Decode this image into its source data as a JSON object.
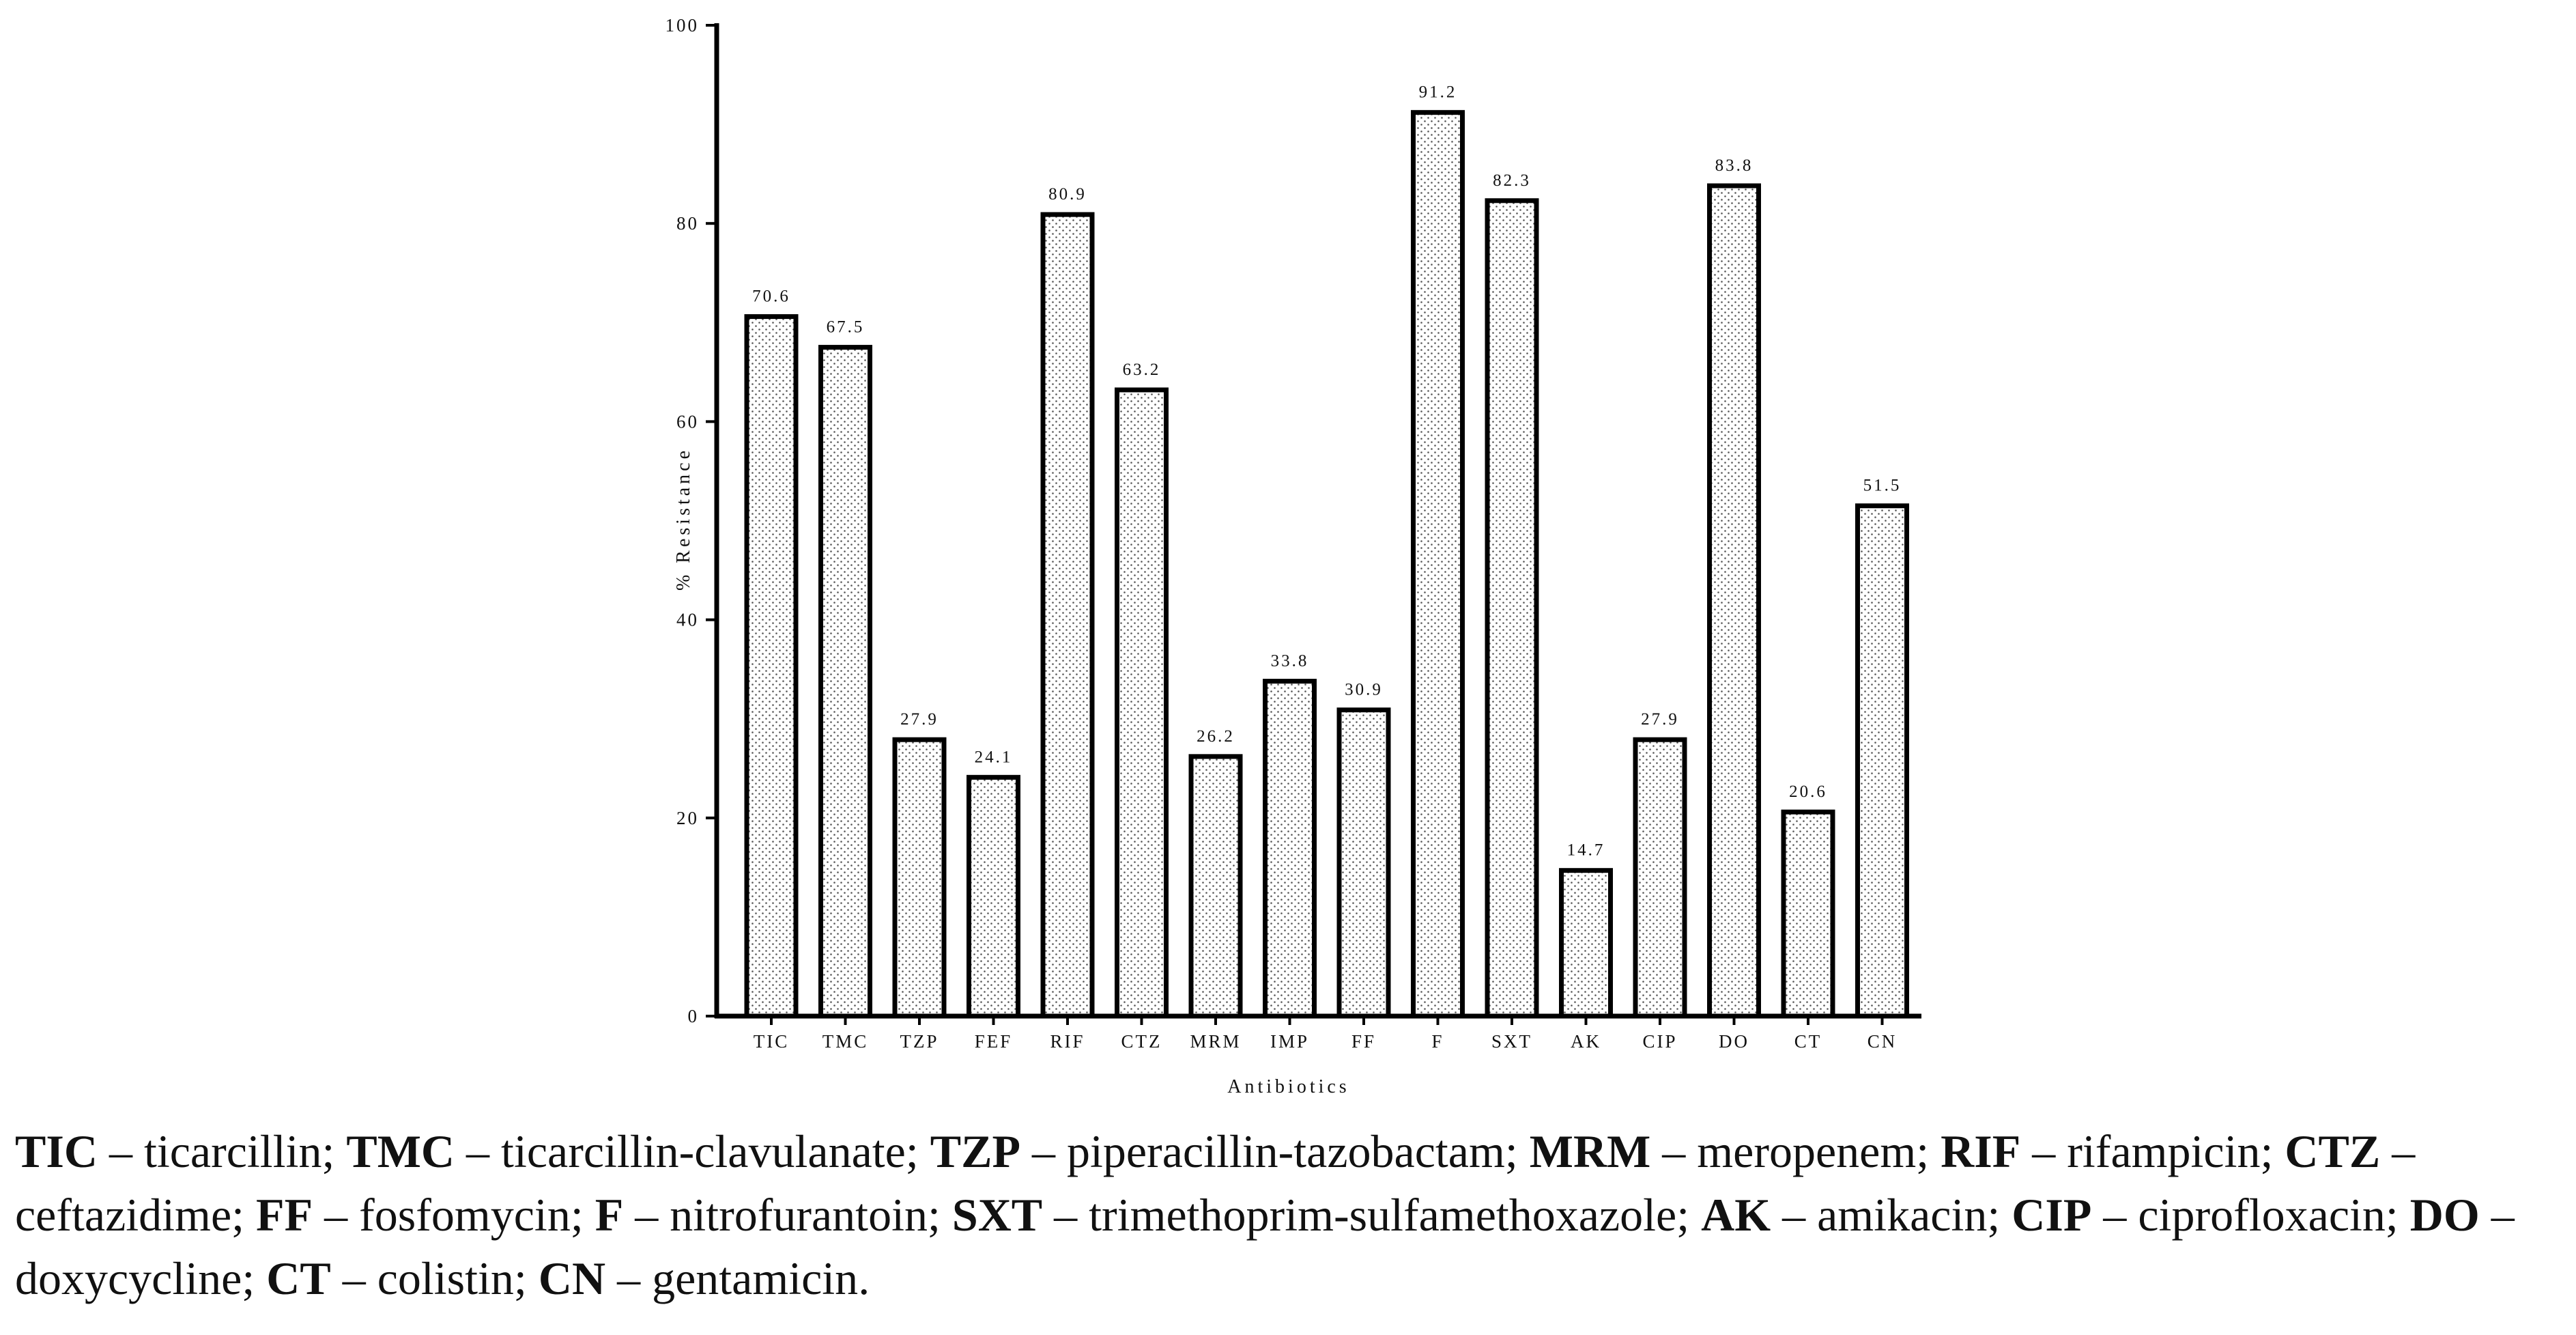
{
  "chart_data": {
    "type": "bar",
    "categories": [
      "TIC",
      "TMC",
      "TZP",
      "FEF",
      "RIF",
      "CTZ",
      "MRM",
      "IMP",
      "FF",
      "F",
      "SXT",
      "AK",
      "CIP",
      "DO",
      "CT",
      "CN"
    ],
    "values": [
      70.6,
      67.5,
      27.9,
      24.1,
      80.9,
      63.2,
      26.2,
      33.8,
      30.9,
      91.2,
      82.3,
      14.7,
      27.9,
      83.8,
      20.6,
      51.5
    ],
    "value_labels": [
      "70.6",
      "67.5",
      "27.9",
      "24.1",
      "80.9",
      "63.2",
      "26.2",
      "33.8",
      "30.9",
      "91.2",
      "82.3",
      "14.7",
      "27.9",
      "83.8",
      "20.6",
      "51.5"
    ],
    "xlabel": "Antibiotics",
    "ylabel": "% Resistance",
    "ylim": [
      0,
      100
    ],
    "yticks": [
      0,
      20,
      40,
      60,
      80,
      100
    ],
    "ytick_labels": [
      "0",
      "20",
      "40",
      "60",
      "80",
      "100"
    ],
    "grid": false,
    "bar_fill": "dotted",
    "bar_color": "#ffffff",
    "bar_edge_color": "#000000"
  },
  "legend_text": [
    {
      "abbr": "TIC",
      "name": "ticarcillin"
    },
    {
      "abbr": "TMC",
      "name": "ticarcillin-clavulanate"
    },
    {
      "abbr": "TZP",
      "name": "piperacillin-tazobactam"
    },
    {
      "abbr": "MRM",
      "name": "meropenem"
    },
    {
      "abbr": "RIF",
      "name": "rifampicin"
    },
    {
      "abbr": "CTZ",
      "name": "ceftazidime"
    },
    {
      "abbr": "FF",
      "name": "fosfomycin"
    },
    {
      "abbr": "F",
      "name": "nitrofurantoin"
    },
    {
      "abbr": "SXT",
      "name": "trimethoprim-sulfamethoxazole"
    },
    {
      "abbr": "AK",
      "name": "amikacin"
    },
    {
      "abbr": "CIP",
      "name": "ciprofloxacin"
    },
    {
      "abbr": "DO",
      "name": "doxycycline"
    },
    {
      "abbr": "CT",
      "name": "colistin"
    },
    {
      "abbr": "CN",
      "name": "gentamicin"
    }
  ]
}
